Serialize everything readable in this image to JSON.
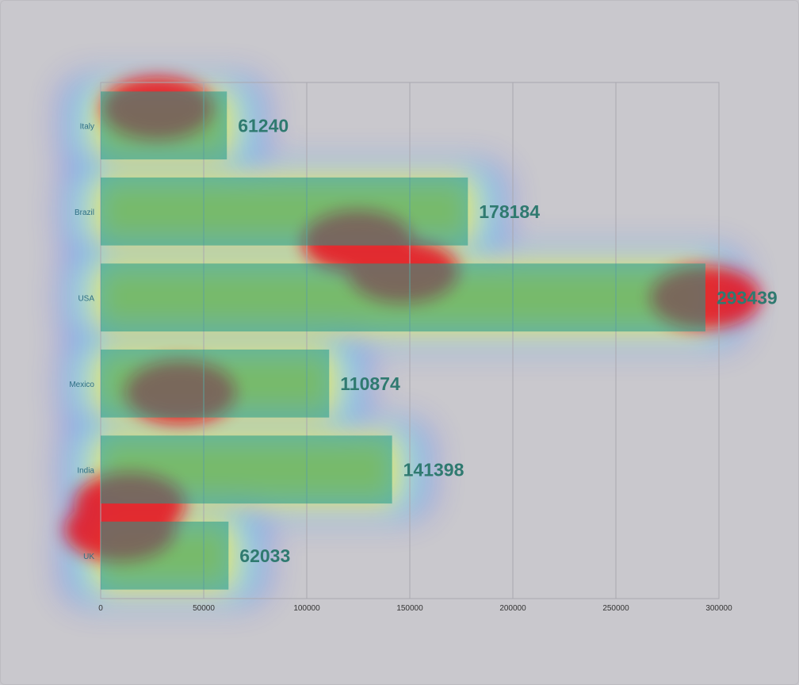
{
  "chart_data": {
    "type": "bar",
    "orientation": "horizontal",
    "title": "",
    "xlabel": "",
    "ylabel": "",
    "categories": [
      "Italy",
      "Brazil",
      "USA",
      "Mexico",
      "India",
      "UK"
    ],
    "values": [
      61240,
      178184,
      293439,
      110874,
      141398,
      62033
    ],
    "xlim": [
      0,
      300000
    ],
    "xticks": [
      0,
      50000,
      100000,
      150000,
      200000,
      250000,
      300000
    ],
    "grid": "vertical",
    "legend": "none",
    "overlay": "attention heatmap (jet colormap) over the chart",
    "colors": {
      "background": "#c9c8cd",
      "gridline": "#a9a8b0",
      "bar_fill": "#1f9a8a",
      "tick_text": "#333333",
      "category_text": "#2f6f86",
      "value_text": "#2f7a70"
    }
  }
}
